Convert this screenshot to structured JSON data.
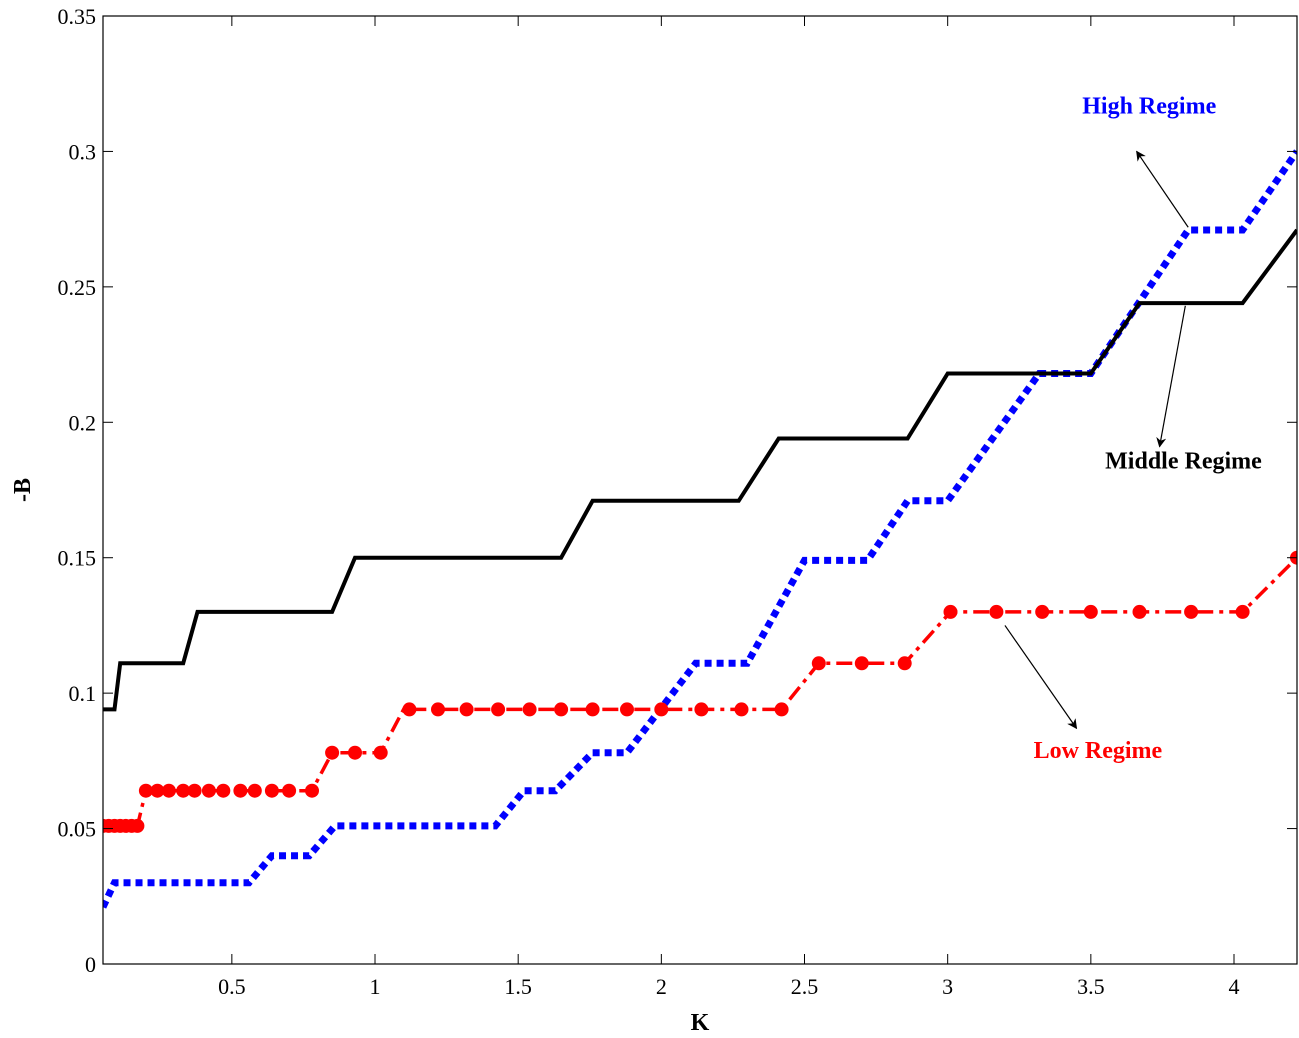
{
  "chart_data": {
    "type": "line",
    "title": "",
    "xlabel": "K",
    "ylabel": "-B",
    "xlim": [
      0.05,
      4.22
    ],
    "ylim": [
      0,
      0.35
    ],
    "xticks": [
      0.5,
      1,
      1.5,
      2,
      2.5,
      3,
      3.5,
      4
    ],
    "xtick_labels": [
      "0.5",
      "1",
      "1.5",
      "2",
      "2.5",
      "3",
      "3.5",
      "4"
    ],
    "yticks": [
      0,
      0.05,
      0.1,
      0.15,
      0.2,
      0.25,
      0.3,
      0.35
    ],
    "ytick_labels": [
      "0",
      "0.05",
      "0.1",
      "0.15",
      "0.2",
      "0.25",
      "0.3",
      "0.35"
    ],
    "grid": false,
    "series": [
      {
        "name": "Middle Regime",
        "color": "#000000",
        "style": "solid",
        "x": [
          0.05,
          0.09,
          0.11,
          0.33,
          0.38,
          0.85,
          0.93,
          1.65,
          1.76,
          2.27,
          2.41,
          2.86,
          3.0,
          3.5,
          3.67,
          4.03,
          4.22
        ],
        "y": [
          0.094,
          0.094,
          0.111,
          0.111,
          0.13,
          0.13,
          0.15,
          0.15,
          0.171,
          0.171,
          0.194,
          0.194,
          0.218,
          0.218,
          0.244,
          0.244,
          0.271
        ]
      },
      {
        "name": "High Regime",
        "color": "#0000ff",
        "style": "dotted",
        "x": [
          0.05,
          0.09,
          0.56,
          0.64,
          0.77,
          0.86,
          1.42,
          1.52,
          1.63,
          1.76,
          1.88,
          2.12,
          2.3,
          2.5,
          2.72,
          2.86,
          3.0,
          3.32,
          3.5,
          3.84,
          4.03,
          4.22
        ],
        "y": [
          0.021,
          0.03,
          0.03,
          0.04,
          0.04,
          0.051,
          0.051,
          0.064,
          0.064,
          0.078,
          0.078,
          0.111,
          0.111,
          0.149,
          0.149,
          0.171,
          0.171,
          0.218,
          0.218,
          0.271,
          0.271,
          0.3
        ]
      },
      {
        "name": "Low Regime",
        "color": "#ff0000",
        "style": "dashdot",
        "x": [
          0.05,
          0.17,
          0.2,
          0.78,
          0.85,
          1.02,
          1.1,
          2.42,
          2.55,
          2.85,
          3.01,
          4.03,
          4.22
        ],
        "y": [
          0.051,
          0.051,
          0.064,
          0.064,
          0.078,
          0.078,
          0.094,
          0.094,
          0.111,
          0.111,
          0.13,
          0.13,
          0.15
        ],
        "markers": {
          "x": [
            0.05,
            0.07,
            0.09,
            0.11,
            0.13,
            0.15,
            0.17,
            0.2,
            0.24,
            0.28,
            0.33,
            0.37,
            0.42,
            0.47,
            0.53,
            0.58,
            0.64,
            0.7,
            0.78,
            0.85,
            0.93,
            1.02,
            1.12,
            1.22,
            1.32,
            1.43,
            1.54,
            1.65,
            1.76,
            1.88,
            2.0,
            2.14,
            2.28,
            2.42,
            2.55,
            2.7,
            2.85,
            3.01,
            3.17,
            3.33,
            3.5,
            3.67,
            3.85,
            4.03,
            4.22
          ],
          "y": [
            0.051,
            0.051,
            0.051,
            0.051,
            0.051,
            0.051,
            0.051,
            0.064,
            0.064,
            0.064,
            0.064,
            0.064,
            0.064,
            0.064,
            0.064,
            0.064,
            0.064,
            0.064,
            0.064,
            0.078,
            0.078,
            0.078,
            0.094,
            0.094,
            0.094,
            0.094,
            0.094,
            0.094,
            0.094,
            0.094,
            0.094,
            0.094,
            0.094,
            0.094,
            0.111,
            0.111,
            0.111,
            0.13,
            0.13,
            0.13,
            0.13,
            0.13,
            0.13,
            0.13,
            0.15
          ]
        }
      }
    ],
    "annotations": [
      {
        "text": "High Regime",
        "color": "#0000ff",
        "text_at": [
          3.47,
          0.314
        ],
        "arrow_from": [
          3.84,
          0.272
        ],
        "arrow_to": [
          3.66,
          0.3
        ]
      },
      {
        "text": "Middle Regime",
        "color": "#000000",
        "text_at": [
          3.55,
          0.183
        ],
        "arrow_from": [
          3.83,
          0.243
        ],
        "arrow_to": [
          3.74,
          0.191
        ]
      },
      {
        "text": "Low Regime",
        "color": "#ff0000",
        "text_at": [
          3.3,
          0.076
        ],
        "arrow_from": [
          3.2,
          0.125
        ],
        "arrow_to": [
          3.45,
          0.087
        ]
      }
    ]
  }
}
